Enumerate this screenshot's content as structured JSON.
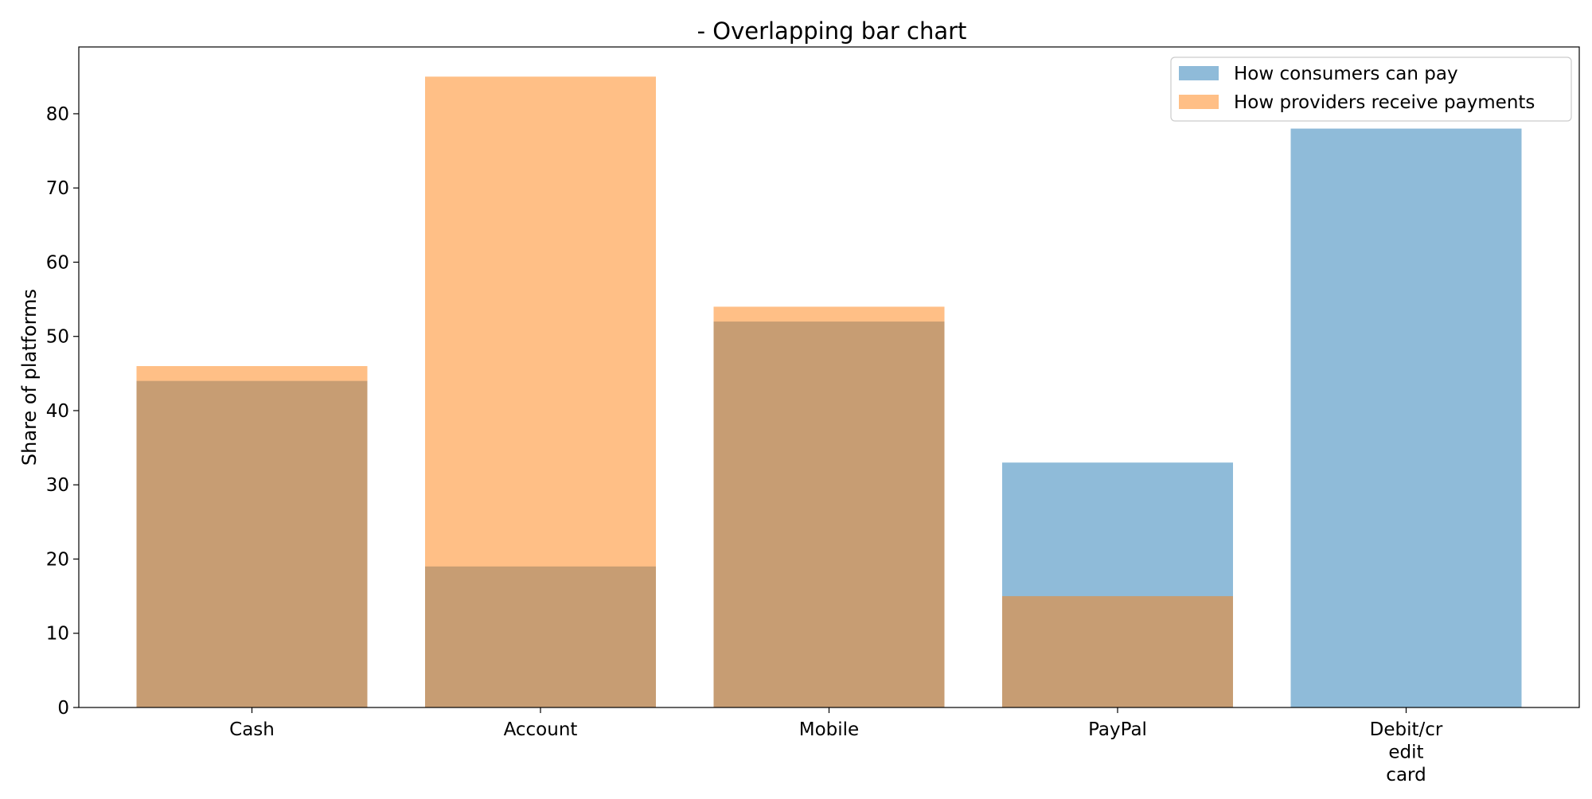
{
  "chart_data": {
    "type": "bar",
    "title": "- Overlapping bar chart",
    "xlabel": "",
    "ylabel": "Share of platforms",
    "ylim": [
      0,
      89
    ],
    "yticks": [
      0,
      10,
      20,
      30,
      40,
      50,
      60,
      70,
      80
    ],
    "categories": [
      "Cash",
      "Account",
      "Mobile",
      "PayPal",
      "Debit/cr\nedit\ncard"
    ],
    "series": [
      {
        "name": "How consumers can pay",
        "values": [
          44,
          19,
          52,
          33,
          78
        ],
        "color": "#1f77b4",
        "opacity": 0.5
      },
      {
        "name": "How providers receive payments",
        "values": [
          46,
          85,
          54,
          15,
          0
        ],
        "color": "#ff7f0e",
        "opacity": 0.5
      }
    ],
    "overlap": true,
    "grid": false,
    "legend_position": "top-right"
  }
}
